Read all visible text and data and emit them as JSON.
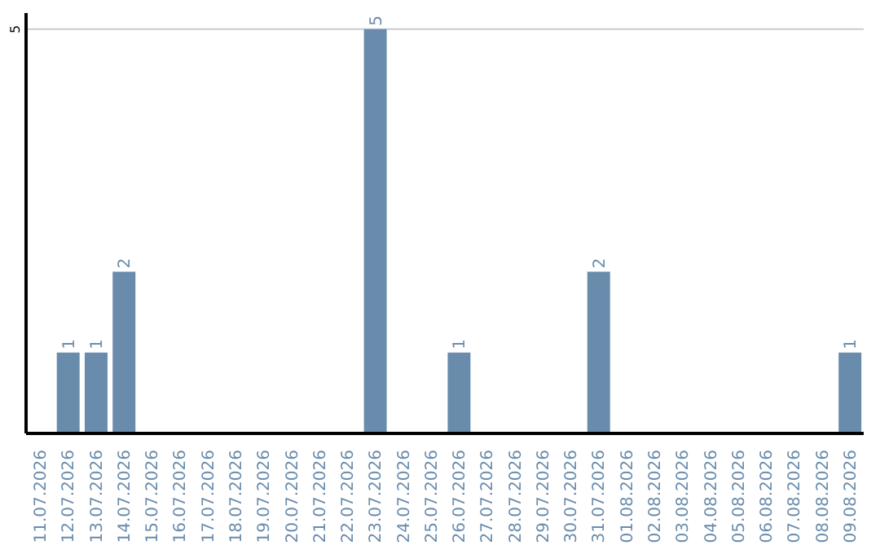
{
  "chart_data": {
    "type": "bar",
    "categories": [
      "11.07.2026",
      "12.07.2026",
      "13.07.2026",
      "14.07.2026",
      "15.07.2026",
      "16.07.2026",
      "17.07.2026",
      "18.07.2026",
      "19.07.2026",
      "20.07.2026",
      "21.07.2026",
      "22.07.2026",
      "23.07.2026",
      "24.07.2026",
      "25.07.2026",
      "26.07.2026",
      "27.07.2026",
      "28.07.2026",
      "29.07.2026",
      "30.07.2026",
      "31.07.2026",
      "01.08.2026",
      "02.08.2026",
      "03.08.2026",
      "04.08.2026",
      "05.08.2026",
      "06.08.2026",
      "07.08.2026",
      "08.08.2026",
      "09.08.2026"
    ],
    "values": [
      0,
      1,
      1,
      2,
      0,
      0,
      0,
      0,
      0,
      0,
      0,
      0,
      5,
      0,
      0,
      1,
      0,
      0,
      0,
      0,
      2,
      0,
      0,
      0,
      0,
      0,
      0,
      0,
      0,
      1
    ],
    "value_labels": [
      null,
      "1",
      "1",
      "2",
      null,
      null,
      null,
      null,
      null,
      null,
      null,
      null,
      "5",
      null,
      null,
      "1",
      null,
      null,
      null,
      null,
      "2",
      null,
      null,
      null,
      null,
      null,
      null,
      null,
      null,
      "1"
    ],
    "color": "#6a8cac",
    "ylim": [
      0,
      5.2
    ],
    "yticks": [
      5
    ],
    "grid": "y"
  }
}
